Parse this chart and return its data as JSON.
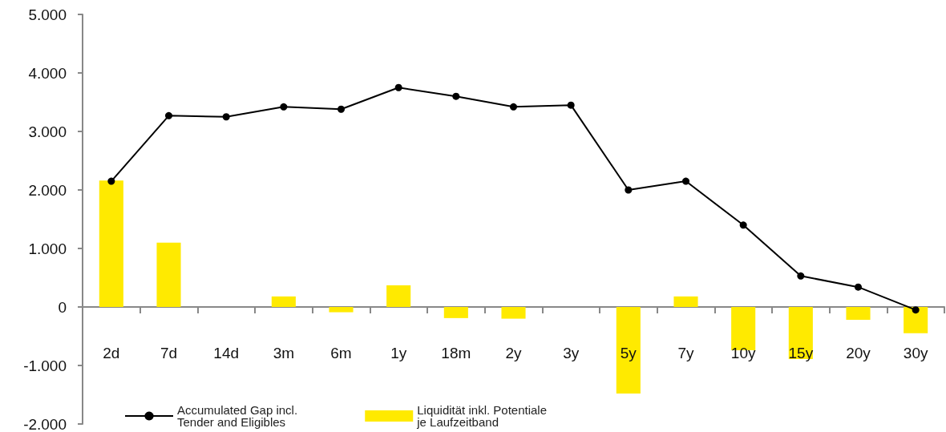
{
  "chart_data": {
    "type": "bar",
    "categories": [
      "2d",
      "7d",
      "14d",
      "3m",
      "6m",
      "1y",
      "18m",
      "2y",
      "3y",
      "5y",
      "7y",
      "10y",
      "15y",
      "20y",
      "30y"
    ],
    "series": [
      {
        "name": "Liquidität inkl. Potentiale je Laufzeitband",
        "color": "#ffea00",
        "values": [
          2160,
          1100,
          0,
          180,
          -90,
          370,
          -190,
          -200,
          0,
          -1480,
          180,
          -740,
          -890,
          -220,
          -450
        ]
      },
      {
        "name": "Accumulated Gap incl. Tender and Eligibles",
        "type": "line",
        "color": "#000000",
        "marker": "circle",
        "values": [
          2150,
          3270,
          3250,
          3420,
          3380,
          3750,
          3600,
          3420,
          3450,
          2000,
          2150,
          1400,
          530,
          340,
          -50
        ]
      }
    ],
    "ylim": [
      -2000,
      5000
    ],
    "yticks": [
      {
        "value": -2000,
        "label": "-2.000"
      },
      {
        "value": -1000,
        "label": "-1.000"
      },
      {
        "value": 0,
        "label": "0"
      },
      {
        "value": 1000,
        "label": "1.000"
      },
      {
        "value": 2000,
        "label": "2.000"
      },
      {
        "value": 3000,
        "label": "3.000"
      },
      {
        "value": 4000,
        "label": "4.000"
      },
      {
        "value": 5000,
        "label": "5.000"
      }
    ],
    "grid": false,
    "legend": "bottom left"
  }
}
